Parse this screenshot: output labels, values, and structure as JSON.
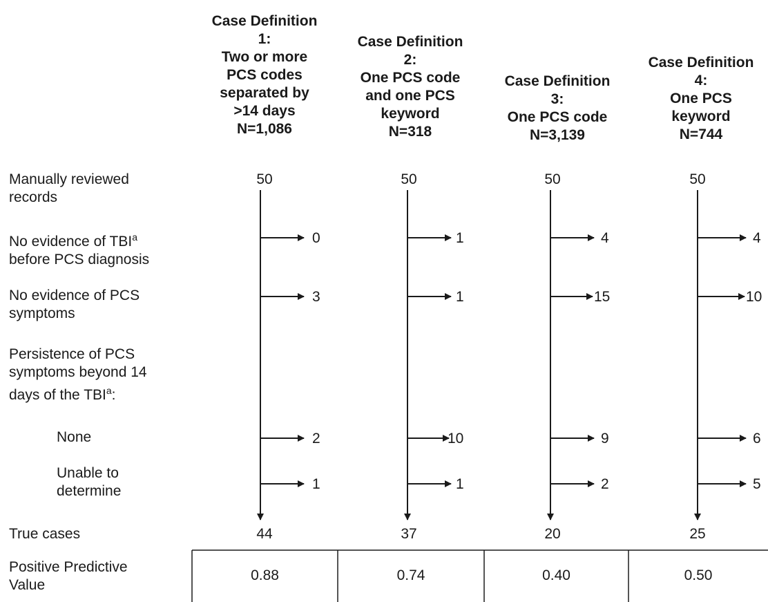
{
  "columns": [
    {
      "header": "Case Definition\n1:\nTwo or more\nPCS codes\nseparated by\n>14 days\nN=1,086",
      "reviewed": "50",
      "no_tbi": "0",
      "no_symptoms": "3",
      "none": "2",
      "unable": "1",
      "true_cases": "44",
      "ppv": "0.88"
    },
    {
      "header": "Case Definition\n2:\nOne PCS code\nand one PCS\nkeyword\nN=318",
      "reviewed": "50",
      "no_tbi": "1",
      "no_symptoms": "1",
      "none": "10",
      "unable": "1",
      "true_cases": "37",
      "ppv": "0.74"
    },
    {
      "header": "Case Definition\n3:\nOne PCS code\nN=3,139",
      "reviewed": "50",
      "no_tbi": "4",
      "no_symptoms": "15",
      "none": "9",
      "unable": "2",
      "true_cases": "20",
      "ppv": "0.40"
    },
    {
      "header": "Case Definition\n4:\nOne PCS\nkeyword\nN=744",
      "reviewed": "50",
      "no_tbi": "4",
      "no_symptoms": "10",
      "none": "6",
      "unable": "5",
      "true_cases": "25",
      "ppv": "0.50"
    }
  ],
  "rows": {
    "reviewed": "Manually reviewed\nrecords",
    "no_tbi_prefix": "No evidence of TBI",
    "no_tbi_sup": "a",
    "no_tbi_suffix": "\nbefore PCS diagnosis",
    "no_symptoms": "No evidence of PCS\nsymptoms",
    "persistence_prefix": "Persistence of PCS\nsymptoms beyond 14\ndays of the TBI",
    "persistence_sup": "a",
    "persistence_suffix": ":",
    "none": "None",
    "unable": "Unable to\ndetermine",
    "true_cases": "True cases",
    "ppv": "Positive Predictive\nValue"
  }
}
